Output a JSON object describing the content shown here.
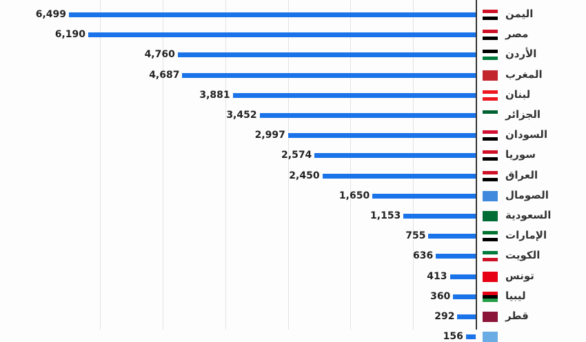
{
  "chart_data": {
    "type": "bar",
    "orientation": "horizontal",
    "title": "",
    "xlabel": "",
    "ylabel": "",
    "xlim": [
      0,
      6500
    ],
    "grid": true,
    "categories": [
      "اليمن",
      "مصر",
      "الأردن",
      "المغرب",
      "لبنان",
      "الجزائر",
      "السودان",
      "سوريا",
      "العراق",
      "الصومال",
      "السعودية",
      "الإمارات",
      "الكويت",
      "تونس",
      "ليبيا",
      "قطر",
      ""
    ],
    "values": [
      6499,
      6190,
      4760,
      4687,
      3881,
      3452,
      2997,
      2574,
      2450,
      1650,
      1153,
      755,
      636,
      413,
      360,
      292,
      156
    ],
    "value_labels": [
      "6,499",
      "6,190",
      "4,760",
      "4,687",
      "3,881",
      "3,452",
      "2,997",
      "2,574",
      "2,450",
      "1,650",
      "1,153",
      "755",
      "636",
      "413",
      "360",
      "292",
      "156"
    ],
    "bar_color": "#1a73e8",
    "flags": [
      [
        "#ce1126",
        "#ffffff",
        "#000000"
      ],
      [
        "#ce1126",
        "#ffffff",
        "#000000"
      ],
      [
        "#000000",
        "#ffffff",
        "#007a3d"
      ],
      [
        "#c1272d",
        "#c1272d",
        "#c1272d"
      ],
      [
        "#ee161f",
        "#ffffff",
        "#ee161f"
      ],
      [
        "#006233",
        "#ffffff",
        "#ffffff"
      ],
      [
        "#d21034",
        "#ffffff",
        "#000000"
      ],
      [
        "#ce1126",
        "#ffffff",
        "#000000"
      ],
      [
        "#ce1126",
        "#ffffff",
        "#000000"
      ],
      [
        "#4189dd",
        "#4189dd",
        "#4189dd"
      ],
      [
        "#006c35",
        "#006c35",
        "#006c35"
      ],
      [
        "#00732f",
        "#ffffff",
        "#000000"
      ],
      [
        "#007a3d",
        "#ffffff",
        "#ce1126"
      ],
      [
        "#e70013",
        "#e70013",
        "#e70013"
      ],
      [
        "#e70013",
        "#000000",
        "#239e46"
      ],
      [
        "#8a1538",
        "#8a1538",
        "#8a1538"
      ],
      [
        "#6cace4",
        "#6cace4",
        "#6cace4"
      ]
    ]
  }
}
